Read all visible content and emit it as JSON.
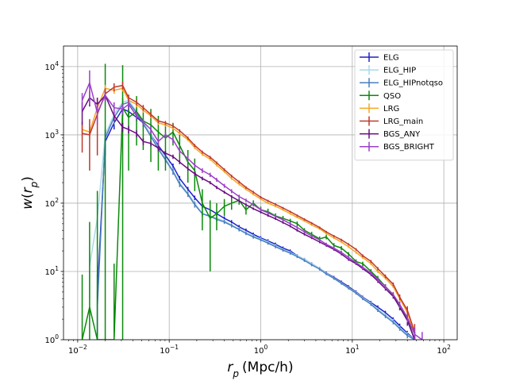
{
  "chart_data": {
    "type": "line",
    "title": "",
    "xlabel": "r_p (Mpc/h)",
    "ylabel": "w(r_p)",
    "xscale": "log",
    "yscale": "log",
    "xlim": [
      0.007,
      140
    ],
    "ylim": [
      1,
      20000
    ],
    "grid": true,
    "legend_position": "top-right",
    "x_ticks": [
      {
        "value": 0.01,
        "base": "10",
        "exp": "−2"
      },
      {
        "value": 0.1,
        "base": "10",
        "exp": "−1"
      },
      {
        "value": 1,
        "base": "10",
        "exp": "0"
      },
      {
        "value": 10,
        "base": "10",
        "exp": "1"
      },
      {
        "value": 100,
        "base": "10",
        "exp": "2"
      }
    ],
    "y_ticks": [
      {
        "value": 1,
        "base": "10",
        "exp": "0"
      },
      {
        "value": 10,
        "base": "10",
        "exp": "1"
      },
      {
        "value": 100,
        "base": "10",
        "exp": "2"
      },
      {
        "value": 1000,
        "base": "10",
        "exp": "3"
      },
      {
        "value": 10000,
        "base": "10",
        "exp": "4"
      }
    ],
    "series": [
      {
        "name": "ELG",
        "color": "#1f22c8",
        "x": [
          0.0164,
          0.02,
          0.025,
          0.031,
          0.036,
          0.044,
          0.052,
          0.063,
          0.076,
          0.091,
          0.11,
          0.13,
          0.16,
          0.19,
          0.23,
          0.28,
          0.33,
          0.4,
          0.48,
          0.58,
          0.69,
          0.83,
          1.0,
          1.2,
          1.45,
          1.75,
          2.1,
          2.5,
          3.0,
          3.6,
          4.4,
          5.2,
          6.3,
          7.6,
          9.1,
          11,
          13,
          16,
          19,
          23,
          28,
          33,
          40,
          48
        ],
        "y": [
          5,
          800,
          1500,
          2400,
          2200,
          1800,
          1500,
          1000,
          700,
          500,
          350,
          230,
          160,
          120,
          90,
          80,
          70,
          60,
          53,
          45,
          40,
          35,
          31,
          28,
          25,
          22,
          20,
          17,
          15,
          13,
          11,
          9.5,
          8.2,
          7,
          6,
          5,
          4.2,
          3.5,
          3,
          2.5,
          2,
          1.6,
          1.25,
          1
        ],
        "y_err": [
          4,
          300,
          300,
          500,
          400,
          200,
          150,
          100,
          60,
          40,
          30,
          20,
          13,
          9,
          7,
          6,
          5,
          4,
          3.5,
          3,
          2.5,
          2,
          1.8,
          1.6,
          1.4,
          1.2,
          1,
          0.9,
          0.8,
          0.7,
          0.6,
          0.5,
          0.4,
          0.35,
          0.3,
          0.26,
          0.22,
          0.2,
          0.18,
          0.15,
          0.13,
          0.12,
          0.1,
          0.1
        ]
      },
      {
        "name": "ELG_HIP",
        "color": "#a8d8ea",
        "x": [
          0.0135,
          0.0164,
          0.02,
          0.025,
          0.031,
          0.036,
          0.044,
          0.052,
          0.063,
          0.076,
          0.091,
          0.11,
          0.13,
          0.16,
          0.19,
          0.23,
          0.28,
          0.33,
          0.4,
          0.48,
          0.58,
          0.69,
          0.83,
          1.0,
          1.2,
          1.45,
          1.75,
          2.1,
          2.5,
          3.0,
          3.6,
          4.4,
          5.2,
          6.3,
          7.6,
          9.1,
          11,
          13,
          16,
          19,
          23,
          28,
          33,
          40,
          48
        ],
        "y": [
          12,
          60,
          1000,
          2000,
          3000,
          3200,
          2200,
          1500,
          1000,
          650,
          450,
          300,
          200,
          140,
          100,
          70,
          65,
          60,
          55,
          48,
          42,
          37,
          33,
          30,
          27,
          24,
          21,
          19,
          17,
          15,
          13,
          11,
          9.4,
          8,
          6.8,
          5.8,
          4.9,
          4.1,
          3.4,
          2.8,
          2.3,
          1.9,
          1.5,
          1.2,
          1
        ],
        "y_err": [
          8,
          40,
          300,
          400,
          600,
          500,
          300,
          150,
          100,
          60,
          40,
          30,
          18,
          12,
          9,
          6,
          5,
          4,
          3.5,
          3,
          2.5,
          2,
          1.8,
          1.6,
          1.4,
          1.2,
          1,
          0.9,
          0.8,
          0.7,
          0.6,
          0.5,
          0.4,
          0.35,
          0.3,
          0.26,
          0.22,
          0.2,
          0.18,
          0.15,
          0.13,
          0.12,
          0.1,
          0.1,
          0.1
        ]
      },
      {
        "name": "ELG_HIPnotqso",
        "color": "#4a7fbf",
        "x": [
          0.0164,
          0.02,
          0.025,
          0.031,
          0.036,
          0.044,
          0.052,
          0.063,
          0.076,
          0.091,
          0.11,
          0.13,
          0.16,
          0.19,
          0.23,
          0.28,
          0.33,
          0.4,
          0.48,
          0.58,
          0.69,
          0.83,
          1.0,
          1.2,
          1.45,
          1.75,
          2.1,
          2.5,
          3.0,
          3.6,
          4.4,
          5.2,
          6.3,
          7.6,
          9.1,
          11,
          13,
          16,
          19,
          23,
          28,
          33,
          40,
          48
        ],
        "y": [
          3,
          900,
          1800,
          2800,
          3000,
          2100,
          1450,
          950,
          620,
          430,
          290,
          190,
          135,
          95,
          70,
          64,
          58,
          53,
          47,
          41,
          36,
          32,
          29,
          26,
          23,
          20.5,
          18.5,
          16.5,
          14.5,
          12.5,
          10.8,
          9.2,
          7.9,
          6.7,
          5.7,
          4.8,
          4.0,
          3.3,
          2.7,
          2.2,
          1.8,
          1.45,
          1.15,
          1
        ],
        "y_err": [
          2,
          300,
          400,
          600,
          500,
          300,
          150,
          100,
          60,
          40,
          30,
          18,
          12,
          9,
          6,
          5,
          4,
          3.5,
          3,
          2.5,
          2,
          1.8,
          1.6,
          1.4,
          1.2,
          1,
          0.9,
          0.8,
          0.7,
          0.6,
          0.5,
          0.4,
          0.35,
          0.3,
          0.26,
          0.22,
          0.2,
          0.18,
          0.15,
          0.13,
          0.12,
          0.1,
          0.1,
          0.1
        ]
      },
      {
        "name": "QSO",
        "color": "#0a8a0a",
        "x": [
          0.0112,
          0.0135,
          0.0164,
          0.02,
          0.025,
          0.031,
          0.036,
          0.044,
          0.052,
          0.063,
          0.076,
          0.091,
          0.11,
          0.13,
          0.16,
          0.19,
          0.23,
          0.28,
          0.33,
          0.4,
          0.48,
          0.58,
          0.69,
          0.83,
          1.0,
          1.2,
          1.45,
          1.75,
          2.1,
          2.5,
          3.0,
          3.6,
          4.4,
          5.2,
          6.3,
          7.6,
          9.1,
          11,
          13,
          16,
          19,
          23,
          28,
          33,
          40,
          48
        ],
        "y": [
          1,
          3,
          1,
          1,
          1,
          2500,
          1800,
          2200,
          1600,
          1400,
          1100,
          900,
          1100,
          700,
          400,
          300,
          100,
          60,
          70,
          90,
          100,
          110,
          80,
          100,
          80,
          75,
          65,
          60,
          55,
          50,
          40,
          35,
          30,
          32,
          24,
          22,
          18,
          14,
          13,
          10,
          8,
          6,
          4.5,
          3,
          2,
          1
        ],
        "y_err": [
          8,
          50,
          150,
          11000,
          12,
          8000,
          1500,
          1500,
          1000,
          1000,
          800,
          600,
          400,
          300,
          200,
          150,
          60,
          50,
          30,
          25,
          20,
          15,
          12,
          10,
          9,
          8,
          6,
          5,
          4,
          4,
          3,
          3,
          2.5,
          2.5,
          2,
          1.5,
          1.2,
          1,
          0.9,
          0.8,
          0.6,
          0.5,
          0.4,
          0.3,
          0.3,
          0.3
        ]
      },
      {
        "name": "LRG",
        "color": "#f5a623",
        "x": [
          0.0112,
          0.0135,
          0.0164,
          0.02,
          0.025,
          0.031,
          0.036,
          0.044,
          0.052,
          0.063,
          0.076,
          0.091,
          0.11,
          0.13,
          0.16,
          0.19,
          0.23,
          0.28,
          0.33,
          0.4,
          0.48,
          0.58,
          0.69,
          0.83,
          1.0,
          1.2,
          1.45,
          1.75,
          2.1,
          2.5,
          3.0,
          3.6,
          4.4,
          5.2,
          6.3,
          7.6,
          9.1,
          11,
          13,
          16,
          19,
          23,
          28,
          33,
          40,
          48
        ],
        "y": [
          1200,
          1100,
          2500,
          4800,
          4500,
          4800,
          3200,
          2800,
          2300,
          1900,
          1500,
          1400,
          1250,
          1050,
          850,
          650,
          520,
          440,
          360,
          290,
          230,
          190,
          160,
          135,
          115,
          100,
          90,
          80,
          70,
          62,
          55,
          48,
          42,
          36,
          31,
          27,
          23,
          19,
          16,
          13,
          10,
          8,
          6,
          4,
          2.5,
          1.2
        ],
        "y_err": [
          200,
          200,
          400,
          600,
          500,
          500,
          300,
          250,
          200,
          150,
          100,
          80,
          60,
          50,
          40,
          30,
          25,
          20,
          15,
          12,
          10,
          8,
          6,
          5,
          4,
          3.5,
          3,
          2.6,
          2.2,
          2,
          1.8,
          1.6,
          1.4,
          1.2,
          1.1,
          1,
          0.9,
          0.8,
          0.7,
          0.6,
          0.5,
          0.4,
          0.3,
          0.3,
          0.3,
          0.3
        ]
      },
      {
        "name": "LRG_main",
        "color": "#c0392b",
        "x": [
          0.0112,
          0.0135,
          0.0164,
          0.02,
          0.025,
          0.031,
          0.036,
          0.044,
          0.052,
          0.063,
          0.076,
          0.091,
          0.11,
          0.13,
          0.16,
          0.19,
          0.23,
          0.28,
          0.33,
          0.4,
          0.48,
          0.58,
          0.69,
          0.83,
          1.0,
          1.2,
          1.45,
          1.75,
          2.1,
          2.5,
          3.0,
          3.6,
          4.4,
          5.2,
          6.3,
          7.6,
          9.1,
          11,
          13,
          16,
          19,
          23,
          28,
          33,
          40,
          48
        ],
        "y": [
          1050,
          1000,
          2000,
          4000,
          5000,
          5300,
          3500,
          3000,
          2500,
          2000,
          1600,
          1500,
          1350,
          1150,
          900,
          700,
          560,
          470,
          390,
          310,
          250,
          205,
          170,
          145,
          122,
          108,
          96,
          85,
          75,
          66,
          58,
          51,
          44,
          38,
          33,
          29,
          25,
          21,
          17,
          14,
          11,
          8.5,
          6.5,
          4.2,
          2.7,
          1.3
        ],
        "y_err": [
          500,
          700,
          1500,
          800,
          700,
          700,
          400,
          300,
          250,
          180,
          120,
          100,
          80,
          60,
          45,
          35,
          28,
          22,
          17,
          14,
          11,
          9,
          7,
          6,
          5,
          4,
          3.5,
          3,
          2.5,
          2.2,
          2,
          1.8,
          1.5,
          1.3,
          1.2,
          1.1,
          1,
          0.9,
          0.8,
          0.7,
          0.6,
          0.5,
          0.4,
          0.4,
          0.4,
          0.4
        ]
      },
      {
        "name": "BGS_ANY",
        "color": "#6a0d83",
        "x": [
          0.0112,
          0.0135,
          0.0164,
          0.02,
          0.025,
          0.031,
          0.036,
          0.044,
          0.052,
          0.063,
          0.076,
          0.091,
          0.11,
          0.13,
          0.16,
          0.19,
          0.23,
          0.28,
          0.33,
          0.4,
          0.48,
          0.58,
          0.69,
          0.83,
          1.0,
          1.2,
          1.45,
          1.75,
          2.1,
          2.5,
          3.0,
          3.6,
          4.4,
          5.2,
          6.3,
          7.6,
          9.1,
          11,
          13,
          16,
          19,
          23,
          28,
          33,
          40,
          48
        ],
        "y": [
          2200,
          3500,
          2800,
          3800,
          1900,
          1300,
          1200,
          1050,
          800,
          750,
          640,
          540,
          480,
          400,
          320,
          270,
          230,
          200,
          170,
          145,
          125,
          108,
          95,
          83,
          74,
          66,
          59,
          52,
          46,
          40,
          35,
          31,
          27,
          24,
          21,
          18,
          15,
          13,
          11,
          9,
          7.2,
          5.6,
          4.3,
          3,
          1.9,
          1
        ],
        "y_err": [
          800,
          900,
          700,
          600,
          300,
          200,
          150,
          120,
          90,
          70,
          55,
          45,
          35,
          28,
          22,
          17,
          14,
          11,
          9,
          7,
          6,
          5,
          4,
          3.4,
          3,
          2.6,
          2.2,
          2,
          1.8,
          1.6,
          1.4,
          1.2,
          1.1,
          1,
          0.9,
          0.8,
          0.7,
          0.6,
          0.5,
          0.45,
          0.4,
          0.35,
          0.3,
          0.3,
          0.3,
          0.3
        ]
      },
      {
        "name": "BGS_BRIGHT",
        "color": "#9b3fc8",
        "x": [
          0.0112,
          0.0135,
          0.0164,
          0.02,
          0.025,
          0.031,
          0.036,
          0.044,
          0.052,
          0.063,
          0.076,
          0.091,
          0.11,
          0.13,
          0.16,
          0.19,
          0.23,
          0.28,
          0.33,
          0.4,
          0.48,
          0.58,
          0.69,
          0.83,
          1.0,
          1.2,
          1.45,
          1.75,
          2.1,
          2.5,
          3.0,
          3.6,
          4.4,
          5.2,
          6.3,
          7.6,
          9.1,
          11,
          13,
          16,
          19,
          23,
          28,
          33,
          40,
          48,
          58
        ],
        "y": [
          3200,
          5800,
          2100,
          3800,
          2500,
          2400,
          2800,
          1900,
          1550,
          1200,
          800,
          1000,
          850,
          580,
          450,
          360,
          300,
          260,
          220,
          180,
          150,
          125,
          110,
          95,
          80,
          72,
          64,
          57,
          50,
          44,
          38,
          33,
          29,
          25,
          22,
          19,
          16,
          13.5,
          11.5,
          9.5,
          7.6,
          6,
          4.6,
          3.3,
          2.1,
          1.2,
          1
        ],
        "y_err": [
          900,
          3000,
          700,
          700,
          500,
          400,
          400,
          250,
          180,
          140,
          90,
          100,
          80,
          55,
          40,
          30,
          24,
          19,
          15,
          12,
          10,
          8,
          6.5,
          5.5,
          4.5,
          4,
          3.4,
          3,
          2.6,
          2.3,
          2,
          1.8,
          1.6,
          1.4,
          1.2,
          1.1,
          1,
          0.9,
          0.8,
          0.7,
          0.6,
          0.5,
          0.4,
          0.35,
          0.3,
          0.3,
          0.3
        ]
      }
    ]
  }
}
